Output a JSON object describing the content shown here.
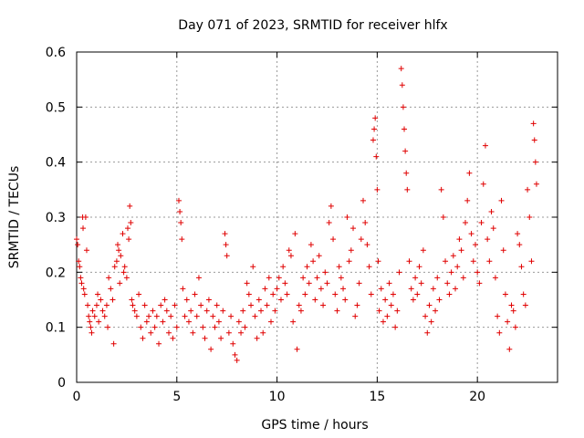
{
  "chart_data": {
    "type": "scatter",
    "title": "Day 071 of 2023, SRMTID for receiver hlfx",
    "xlabel": "GPS time / hours",
    "ylabel": "SRMTID / TECUs",
    "xlim": [
      0,
      24
    ],
    "ylim": [
      0,
      0.6
    ],
    "xticks": [
      0,
      5,
      10,
      15,
      20
    ],
    "yticks": [
      0,
      0.1,
      0.2,
      0.3,
      0.4,
      0.5,
      0.6
    ],
    "xtick_labels": [
      "0",
      "5",
      "10",
      "15",
      "20"
    ],
    "ytick_labels": [
      "0",
      "0.1",
      "0.2",
      "0.3",
      "0.4",
      "0.5",
      "0.6"
    ],
    "grid": true,
    "marker": "+",
    "series": [
      {
        "name": "SRMTID",
        "color": "#e00000",
        "points": [
          [
            0.0,
            0.26
          ],
          [
            0.05,
            0.25
          ],
          [
            0.1,
            0.22
          ],
          [
            0.15,
            0.21
          ],
          [
            0.2,
            0.19
          ],
          [
            0.25,
            0.18
          ],
          [
            0.3,
            0.3
          ],
          [
            0.32,
            0.28
          ],
          [
            0.35,
            0.17
          ],
          [
            0.4,
            0.16
          ],
          [
            0.45,
            0.3
          ],
          [
            0.5,
            0.24
          ],
          [
            0.55,
            0.14
          ],
          [
            0.6,
            0.12
          ],
          [
            0.65,
            0.11
          ],
          [
            0.7,
            0.1
          ],
          [
            0.75,
            0.09
          ],
          [
            0.8,
            0.13
          ],
          [
            0.9,
            0.12
          ],
          [
            1.0,
            0.14
          ],
          [
            1.05,
            0.16
          ],
          [
            1.1,
            0.11
          ],
          [
            1.2,
            0.15
          ],
          [
            1.3,
            0.13
          ],
          [
            1.4,
            0.12
          ],
          [
            1.5,
            0.14
          ],
          [
            1.55,
            0.1
          ],
          [
            1.6,
            0.19
          ],
          [
            1.7,
            0.17
          ],
          [
            1.8,
            0.15
          ],
          [
            1.85,
            0.07
          ],
          [
            1.9,
            0.21
          ],
          [
            2.0,
            0.22
          ],
          [
            2.05,
            0.25
          ],
          [
            2.1,
            0.24
          ],
          [
            2.15,
            0.18
          ],
          [
            2.2,
            0.23
          ],
          [
            2.3,
            0.27
          ],
          [
            2.35,
            0.2
          ],
          [
            2.4,
            0.21
          ],
          [
            2.5,
            0.19
          ],
          [
            2.55,
            0.28
          ],
          [
            2.6,
            0.26
          ],
          [
            2.65,
            0.32
          ],
          [
            2.7,
            0.29
          ],
          [
            2.75,
            0.15
          ],
          [
            2.8,
            0.14
          ],
          [
            2.9,
            0.13
          ],
          [
            3.0,
            0.12
          ],
          [
            3.1,
            0.16
          ],
          [
            3.2,
            0.1
          ],
          [
            3.3,
            0.08
          ],
          [
            3.4,
            0.14
          ],
          [
            3.5,
            0.11
          ],
          [
            3.6,
            0.12
          ],
          [
            3.7,
            0.09
          ],
          [
            3.8,
            0.13
          ],
          [
            3.9,
            0.1
          ],
          [
            4.0,
            0.12
          ],
          [
            4.1,
            0.07
          ],
          [
            4.2,
            0.14
          ],
          [
            4.3,
            0.11
          ],
          [
            4.4,
            0.15
          ],
          [
            4.5,
            0.13
          ],
          [
            4.6,
            0.09
          ],
          [
            4.7,
            0.12
          ],
          [
            4.8,
            0.08
          ],
          [
            4.9,
            0.14
          ],
          [
            5.0,
            0.1
          ],
          [
            5.1,
            0.33
          ],
          [
            5.15,
            0.31
          ],
          [
            5.2,
            0.29
          ],
          [
            5.25,
            0.26
          ],
          [
            5.3,
            0.17
          ],
          [
            5.4,
            0.12
          ],
          [
            5.5,
            0.15
          ],
          [
            5.6,
            0.11
          ],
          [
            5.7,
            0.13
          ],
          [
            5.8,
            0.09
          ],
          [
            5.9,
            0.16
          ],
          [
            6.0,
            0.12
          ],
          [
            6.1,
            0.19
          ],
          [
            6.2,
            0.14
          ],
          [
            6.3,
            0.1
          ],
          [
            6.4,
            0.08
          ],
          [
            6.5,
            0.13
          ],
          [
            6.6,
            0.15
          ],
          [
            6.7,
            0.06
          ],
          [
            6.8,
            0.12
          ],
          [
            6.9,
            0.1
          ],
          [
            7.0,
            0.14
          ],
          [
            7.1,
            0.11
          ],
          [
            7.2,
            0.08
          ],
          [
            7.3,
            0.13
          ],
          [
            7.4,
            0.27
          ],
          [
            7.45,
            0.25
          ],
          [
            7.5,
            0.23
          ],
          [
            7.6,
            0.09
          ],
          [
            7.7,
            0.12
          ],
          [
            7.8,
            0.07
          ],
          [
            7.9,
            0.05
          ],
          [
            8.0,
            0.04
          ],
          [
            8.1,
            0.11
          ],
          [
            8.2,
            0.09
          ],
          [
            8.3,
            0.13
          ],
          [
            8.4,
            0.1
          ],
          [
            8.5,
            0.18
          ],
          [
            8.6,
            0.16
          ],
          [
            8.7,
            0.14
          ],
          [
            8.8,
            0.21
          ],
          [
            8.9,
            0.12
          ],
          [
            9.0,
            0.08
          ],
          [
            9.1,
            0.15
          ],
          [
            9.2,
            0.13
          ],
          [
            9.3,
            0.09
          ],
          [
            9.4,
            0.17
          ],
          [
            9.5,
            0.14
          ],
          [
            9.6,
            0.19
          ],
          [
            9.7,
            0.11
          ],
          [
            9.8,
            0.16
          ],
          [
            9.9,
            0.13
          ],
          [
            10.0,
            0.17
          ],
          [
            10.1,
            0.19
          ],
          [
            10.2,
            0.15
          ],
          [
            10.3,
            0.21
          ],
          [
            10.4,
            0.18
          ],
          [
            10.5,
            0.16
          ],
          [
            10.6,
            0.24
          ],
          [
            10.7,
            0.23
          ],
          [
            10.8,
            0.11
          ],
          [
            10.9,
            0.27
          ],
          [
            11.0,
            0.06
          ],
          [
            11.1,
            0.14
          ],
          [
            11.2,
            0.13
          ],
          [
            11.3,
            0.19
          ],
          [
            11.4,
            0.16
          ],
          [
            11.5,
            0.21
          ],
          [
            11.6,
            0.18
          ],
          [
            11.7,
            0.25
          ],
          [
            11.8,
            0.22
          ],
          [
            11.9,
            0.15
          ],
          [
            12.0,
            0.19
          ],
          [
            12.1,
            0.23
          ],
          [
            12.2,
            0.17
          ],
          [
            12.3,
            0.14
          ],
          [
            12.4,
            0.2
          ],
          [
            12.5,
            0.18
          ],
          [
            12.6,
            0.29
          ],
          [
            12.7,
            0.32
          ],
          [
            12.8,
            0.26
          ],
          [
            12.9,
            0.16
          ],
          [
            13.0,
            0.13
          ],
          [
            13.1,
            0.21
          ],
          [
            13.2,
            0.19
          ],
          [
            13.3,
            0.17
          ],
          [
            13.4,
            0.15
          ],
          [
            13.5,
            0.3
          ],
          [
            13.6,
            0.22
          ],
          [
            13.7,
            0.24
          ],
          [
            13.8,
            0.28
          ],
          [
            13.9,
            0.12
          ],
          [
            14.0,
            0.14
          ],
          [
            14.1,
            0.18
          ],
          [
            14.2,
            0.26
          ],
          [
            14.3,
            0.33
          ],
          [
            14.4,
            0.29
          ],
          [
            14.5,
            0.25
          ],
          [
            14.6,
            0.21
          ],
          [
            14.7,
            0.16
          ],
          [
            14.8,
            0.44
          ],
          [
            14.85,
            0.46
          ],
          [
            14.9,
            0.48
          ],
          [
            14.95,
            0.41
          ],
          [
            15.0,
            0.35
          ],
          [
            15.05,
            0.22
          ],
          [
            15.1,
            0.13
          ],
          [
            15.2,
            0.17
          ],
          [
            15.3,
            0.11
          ],
          [
            15.4,
            0.15
          ],
          [
            15.5,
            0.12
          ],
          [
            15.6,
            0.18
          ],
          [
            15.7,
            0.14
          ],
          [
            15.8,
            0.16
          ],
          [
            15.9,
            0.1
          ],
          [
            16.0,
            0.13
          ],
          [
            16.1,
            0.2
          ],
          [
            16.2,
            0.57
          ],
          [
            16.25,
            0.54
          ],
          [
            16.3,
            0.5
          ],
          [
            16.35,
            0.46
          ],
          [
            16.4,
            0.42
          ],
          [
            16.45,
            0.38
          ],
          [
            16.5,
            0.35
          ],
          [
            16.6,
            0.22
          ],
          [
            16.7,
            0.17
          ],
          [
            16.8,
            0.15
          ],
          [
            16.9,
            0.19
          ],
          [
            17.0,
            0.16
          ],
          [
            17.1,
            0.21
          ],
          [
            17.2,
            0.18
          ],
          [
            17.3,
            0.24
          ],
          [
            17.4,
            0.12
          ],
          [
            17.5,
            0.09
          ],
          [
            17.6,
            0.14
          ],
          [
            17.7,
            0.11
          ],
          [
            17.8,
            0.17
          ],
          [
            17.9,
            0.13
          ],
          [
            18.0,
            0.19
          ],
          [
            18.1,
            0.15
          ],
          [
            18.2,
            0.35
          ],
          [
            18.3,
            0.3
          ],
          [
            18.4,
            0.22
          ],
          [
            18.5,
            0.18
          ],
          [
            18.6,
            0.16
          ],
          [
            18.7,
            0.2
          ],
          [
            18.8,
            0.23
          ],
          [
            18.9,
            0.17
          ],
          [
            19.0,
            0.21
          ],
          [
            19.1,
            0.26
          ],
          [
            19.2,
            0.24
          ],
          [
            19.3,
            0.19
          ],
          [
            19.4,
            0.29
          ],
          [
            19.5,
            0.33
          ],
          [
            19.6,
            0.38
          ],
          [
            19.7,
            0.27
          ],
          [
            19.8,
            0.22
          ],
          [
            19.9,
            0.25
          ],
          [
            20.0,
            0.2
          ],
          [
            20.1,
            0.18
          ],
          [
            20.2,
            0.29
          ],
          [
            20.3,
            0.36
          ],
          [
            20.4,
            0.43
          ],
          [
            20.5,
            0.26
          ],
          [
            20.6,
            0.22
          ],
          [
            20.7,
            0.31
          ],
          [
            20.8,
            0.28
          ],
          [
            20.9,
            0.19
          ],
          [
            21.0,
            0.12
          ],
          [
            21.1,
            0.09
          ],
          [
            21.2,
            0.33
          ],
          [
            21.3,
            0.24
          ],
          [
            21.4,
            0.16
          ],
          [
            21.5,
            0.11
          ],
          [
            21.6,
            0.06
          ],
          [
            21.7,
            0.14
          ],
          [
            21.8,
            0.13
          ],
          [
            21.9,
            0.1
          ],
          [
            22.0,
            0.27
          ],
          [
            22.1,
            0.25
          ],
          [
            22.2,
            0.21
          ],
          [
            22.3,
            0.16
          ],
          [
            22.4,
            0.14
          ],
          [
            22.5,
            0.35
          ],
          [
            22.6,
            0.3
          ],
          [
            22.7,
            0.22
          ],
          [
            22.8,
            0.47
          ],
          [
            22.85,
            0.44
          ],
          [
            22.9,
            0.4
          ],
          [
            22.95,
            0.36
          ]
        ]
      }
    ]
  }
}
